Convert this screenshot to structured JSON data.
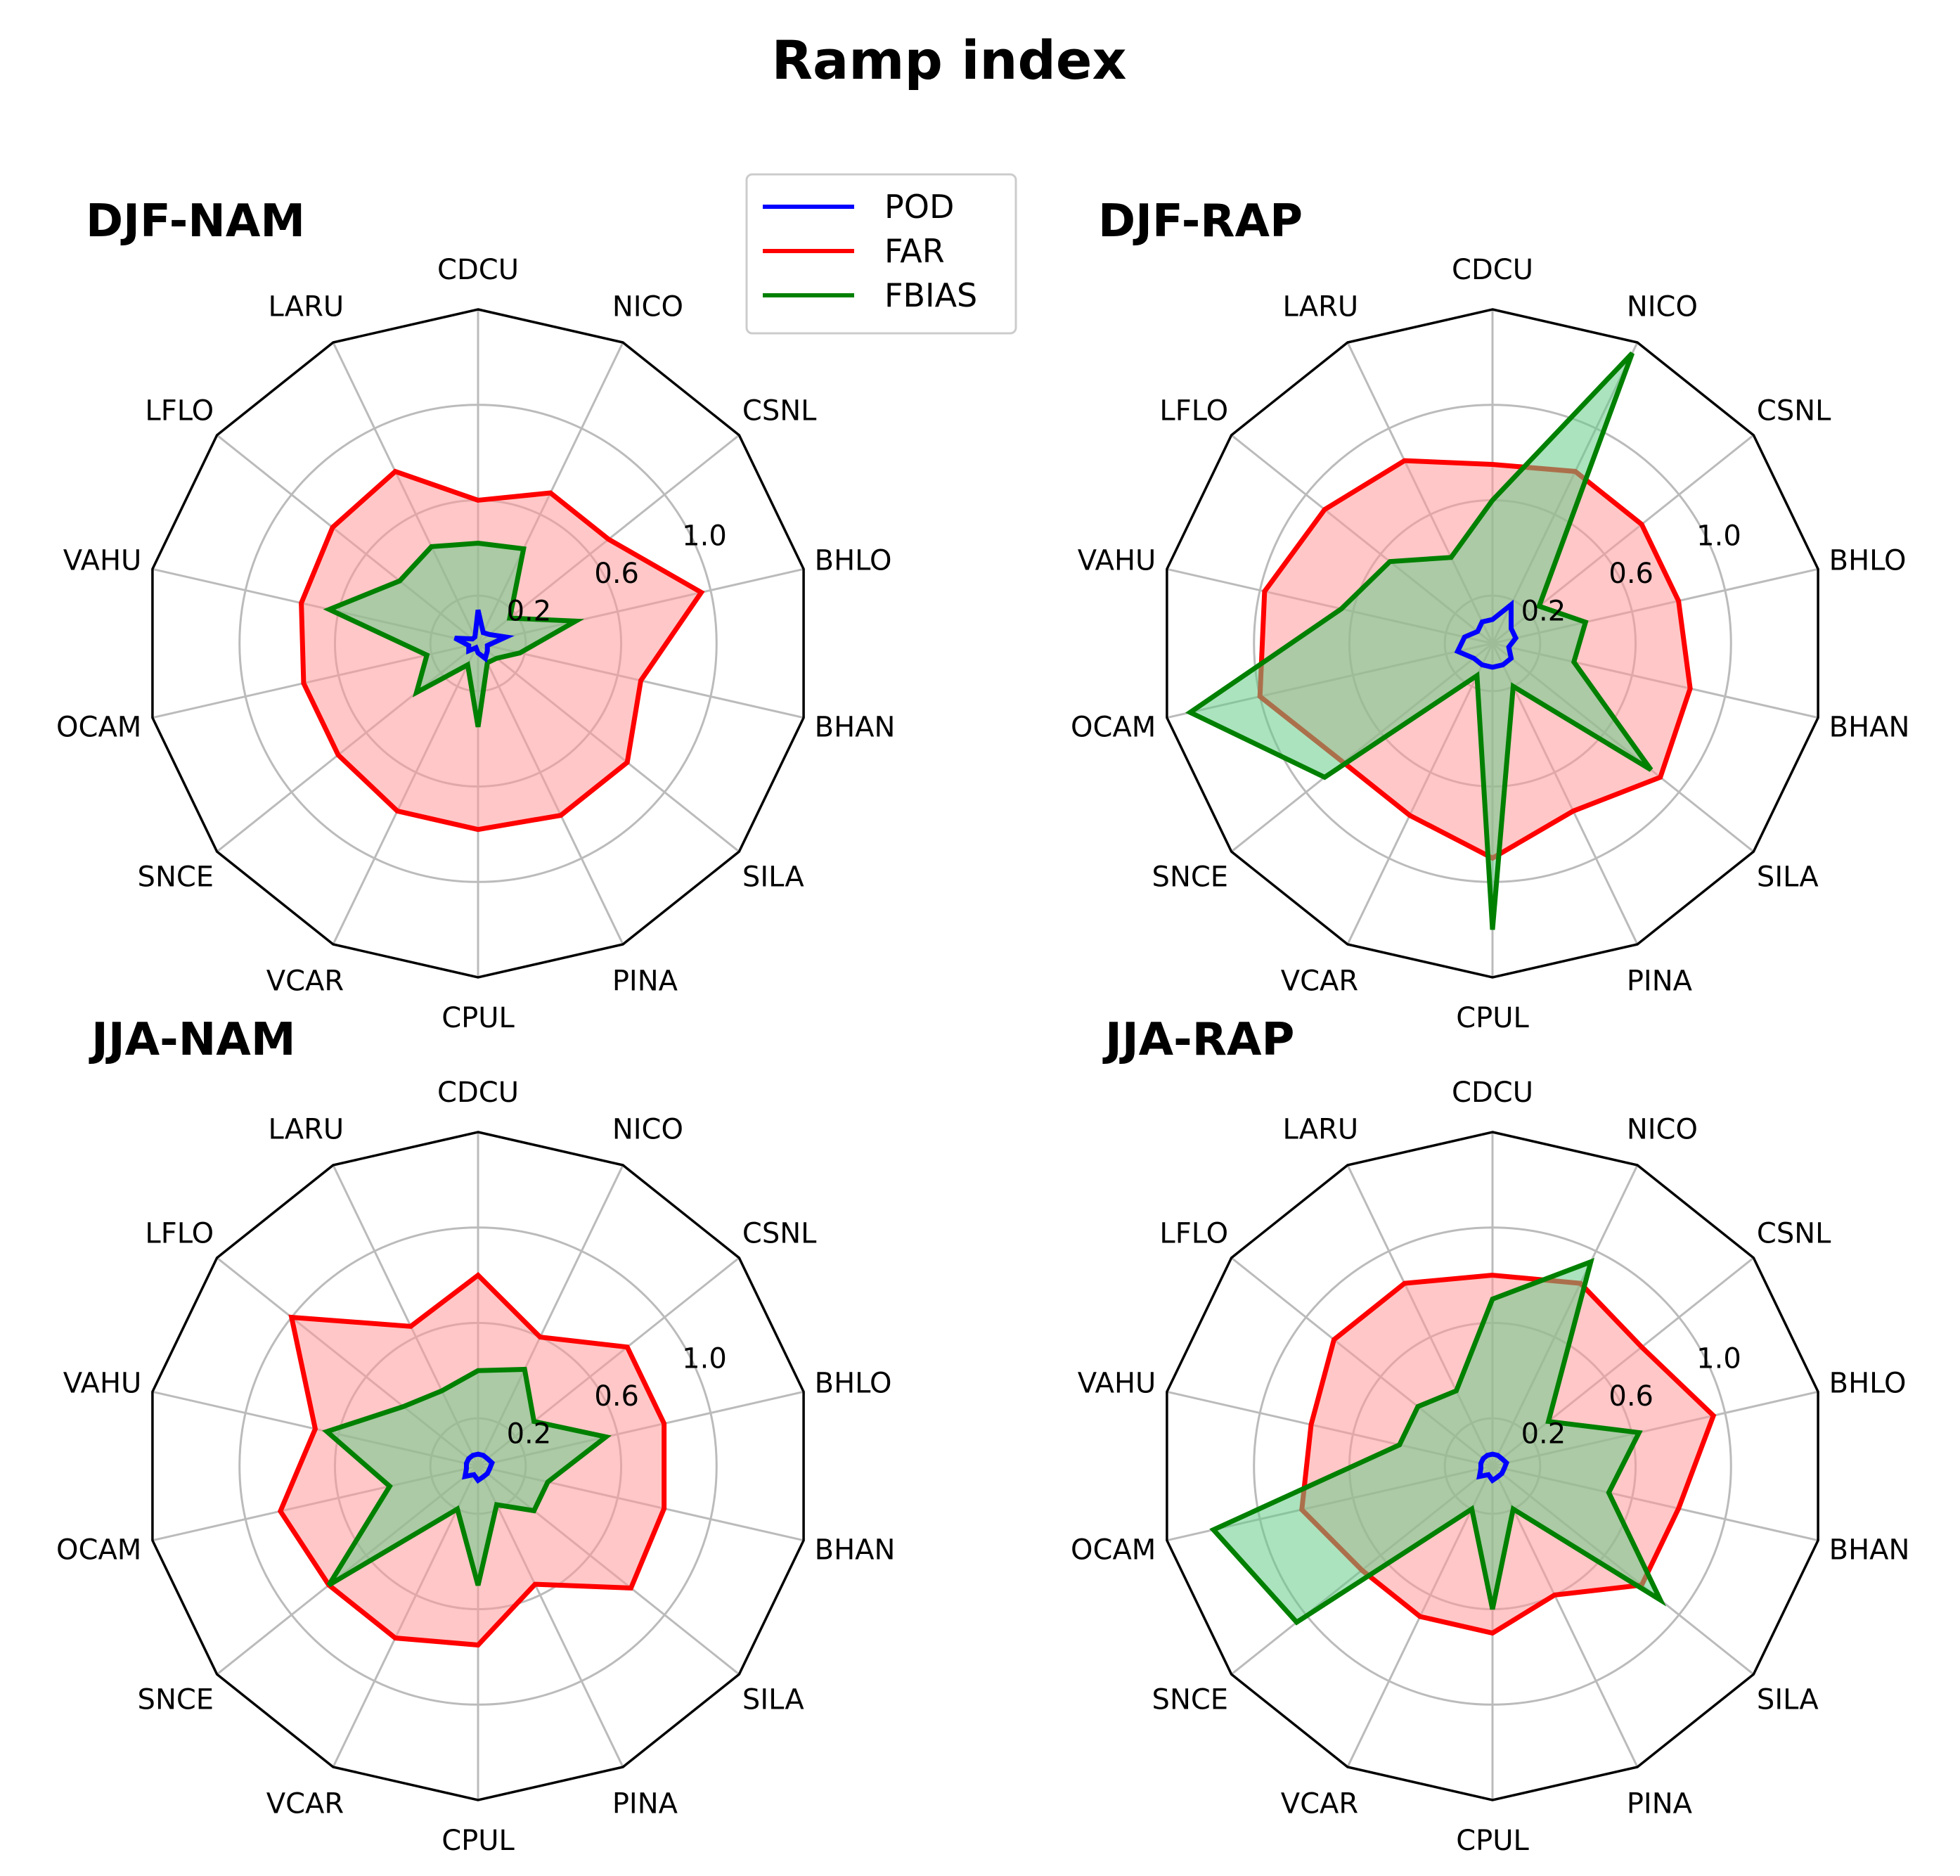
{
  "figure": {
    "title": "Ramp index"
  },
  "legend": [
    {
      "name": "POD",
      "color": "#0000ff"
    },
    {
      "name": "FAR",
      "color": "#ff0000"
    },
    {
      "name": "FBIAS",
      "color": "#008000"
    }
  ],
  "colors": {
    "POD": "#0000ff",
    "FAR": "#ff0000",
    "FAR_fill": "#ff9999",
    "FBIAS": "#008000",
    "FBIAS_fill": "#66cc88",
    "grid": "#bbbbbb",
    "frame": "#000000"
  },
  "chart_data": [
    {
      "type": "radar",
      "title": "DJF-NAM",
      "categories": [
        "CDCU",
        "NICO",
        "CSNL",
        "BHLO",
        "BHAN",
        "SILA",
        "PINA",
        "CPUL",
        "VCAR",
        "SNCE",
        "OCAM",
        "VAHU",
        "LFLO",
        "LARU"
      ],
      "rticks": [
        "0.2",
        "0.6",
        "1.0"
      ],
      "ylim": [
        0,
        1.4
      ],
      "series": [
        {
          "name": "POD",
          "values": [
            0.14,
            0.05,
            0.06,
            0.12,
            0.04,
            0.05,
            0.07,
            0.04,
            0.02,
            0.05,
            0.04,
            0.1,
            0.03,
            0.03
          ]
        },
        {
          "name": "FAR",
          "values": [
            0.6,
            0.7,
            0.7,
            0.96,
            0.7,
            0.8,
            0.8,
            0.78,
            0.78,
            0.75,
            0.75,
            0.76,
            0.78,
            0.8
          ]
        },
        {
          "name": "FBIAS",
          "values": [
            0.42,
            0.44,
            0.17,
            0.42,
            0.18,
            0.1,
            0.09,
            0.35,
            0.1,
            0.33,
            0.22,
            0.64,
            0.42,
            0.45
          ]
        }
      ]
    },
    {
      "type": "radar",
      "title": "DJF-RAP",
      "categories": [
        "CDCU",
        "NICO",
        "CSNL",
        "BHLO",
        "BHAN",
        "SILA",
        "PINA",
        "CPUL",
        "VCAR",
        "SNCE",
        "OCAM",
        "VAHU",
        "LFLO",
        "LARU"
      ],
      "rticks": [
        "0.2",
        "0.6",
        "1.0"
      ],
      "ylim": [
        0,
        1.4
      ],
      "series": [
        {
          "name": "POD",
          "values": [
            0.1,
            0.18,
            0.1,
            0.1,
            0.07,
            0.1,
            0.1,
            0.1,
            0.1,
            0.1,
            0.15,
            0.12,
            0.08,
            0.1
          ]
        },
        {
          "name": "FAR",
          "values": [
            0.75,
            0.8,
            0.8,
            0.8,
            0.85,
            0.9,
            0.78,
            0.9,
            0.8,
            0.8,
            1.0,
            0.98,
            0.9,
            0.85
          ]
        },
        {
          "name": "FBIAS",
          "values": [
            0.6,
            1.35,
            0.25,
            0.4,
            0.35,
            0.85,
            0.2,
            1.2,
            0.15,
            0.9,
            1.3,
            0.65,
            0.55,
            0.4
          ]
        }
      ]
    },
    {
      "type": "radar",
      "title": "JJA-NAM",
      "categories": [
        "CDCU",
        "NICO",
        "CSNL",
        "BHLO",
        "BHAN",
        "SILA",
        "PINA",
        "CPUL",
        "VCAR",
        "SNCE",
        "OCAM",
        "VAHU",
        "LFLO",
        "LARU"
      ],
      "rticks": [
        "0.2",
        "0.6",
        "1.0"
      ],
      "ylim": [
        0,
        1.4
      ],
      "series": [
        {
          "name": "POD",
          "values": [
            0.05,
            0.05,
            0.05,
            0.06,
            0.05,
            0.05,
            0.05,
            0.06,
            0.04,
            0.07,
            0.05,
            0.05,
            0.05,
            0.05
          ]
        },
        {
          "name": "FAR",
          "values": [
            0.8,
            0.6,
            0.8,
            0.8,
            0.8,
            0.82,
            0.55,
            0.75,
            0.8,
            0.8,
            0.85,
            0.7,
            1.0,
            0.65
          ]
        },
        {
          "name": "FBIAS",
          "values": [
            0.4,
            0.45,
            0.3,
            0.55,
            0.3,
            0.3,
            0.18,
            0.5,
            0.2,
            0.8,
            0.38,
            0.65,
            0.4,
            0.35
          ]
        }
      ]
    },
    {
      "type": "radar",
      "title": "JJA-RAP",
      "categories": [
        "CDCU",
        "NICO",
        "CSNL",
        "BHLO",
        "BHAN",
        "SILA",
        "PINA",
        "CPUL",
        "VCAR",
        "SNCE",
        "OCAM",
        "VAHU",
        "LFLO",
        "LARU"
      ],
      "rticks": [
        "0.2",
        "0.6",
        "1.0"
      ],
      "ylim": [
        0,
        1.4
      ],
      "series": [
        {
          "name": "POD",
          "values": [
            0.05,
            0.05,
            0.05,
            0.06,
            0.05,
            0.05,
            0.05,
            0.06,
            0.04,
            0.07,
            0.05,
            0.05,
            0.05,
            0.05
          ]
        },
        {
          "name": "FAR",
          "values": [
            0.8,
            0.85,
            0.8,
            0.95,
            0.8,
            0.8,
            0.6,
            0.7,
            0.7,
            0.7,
            0.82,
            0.78,
            0.85,
            0.85
          ]
        },
        {
          "name": "FBIAS",
          "values": [
            0.7,
            0.95,
            0.3,
            0.63,
            0.5,
            0.9,
            0.2,
            0.6,
            0.2,
            1.05,
            1.2,
            0.4,
            0.4,
            0.35
          ]
        }
      ]
    }
  ]
}
